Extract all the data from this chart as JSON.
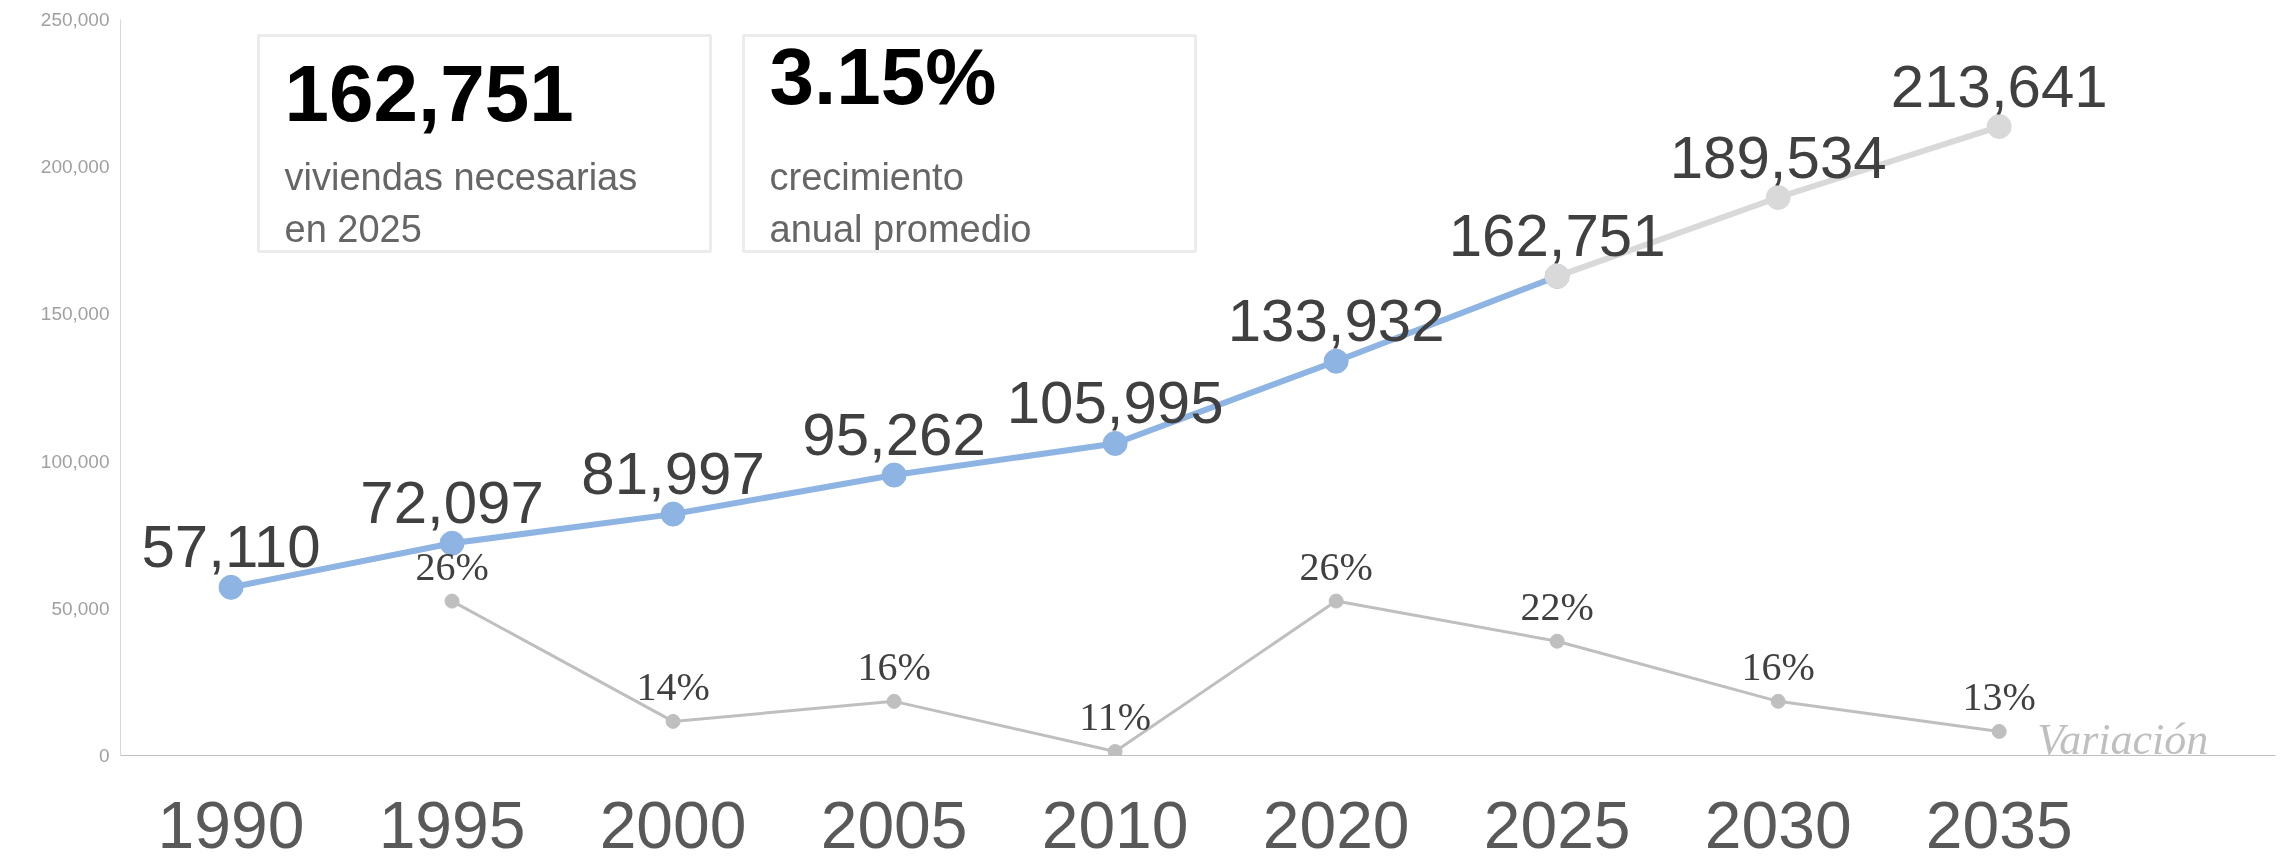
{
  "chart_data": {
    "type": "line",
    "categories": [
      "1990",
      "1995",
      "2000",
      "2005",
      "2010",
      "2020",
      "2025",
      "2030",
      "2035"
    ],
    "series": [
      {
        "color": "#8db4e2",
        "values": [
          57110,
          72097,
          81997,
          95262,
          105995,
          133932,
          162751,
          null,
          null
        ],
        "value_labels": [
          "57,110",
          "72,097",
          "81,997",
          "95,262",
          "105,995",
          "133,932",
          "162,751",
          null,
          null
        ]
      },
      {
        "color": "#d9d9d9",
        "values": [
          null,
          null,
          null,
          null,
          null,
          null,
          162751,
          189534,
          213641
        ],
        "value_labels": [
          null,
          null,
          null,
          null,
          null,
          null,
          null,
          "189,534",
          "213,641"
        ]
      },
      {
        "name": "Variación",
        "color": "#bfbfbf",
        "axis": "y2",
        "values": [
          null,
          26,
          14,
          16,
          11,
          26,
          22,
          16,
          13
        ],
        "value_labels": [
          null,
          "26%",
          "14%",
          "16%",
          "11%",
          "26%",
          "22%",
          "16%",
          "13%"
        ]
      }
    ],
    "ylim": [
      0,
      250000
    ],
    "yticks": [
      {
        "value": 0,
        "label": "0"
      },
      {
        "value": 50000,
        "label": "50,000"
      },
      {
        "value": 100000,
        "label": "100,000"
      },
      {
        "value": 150000,
        "label": "150,000"
      },
      {
        "value": 200000,
        "label": "200,000"
      },
      {
        "value": 250000,
        "label": "250,000"
      }
    ],
    "y2lim": [
      10.6,
      84
    ],
    "annotations": [
      "162,751",
      "viviendas necesarias\nen 2025",
      "3.15%",
      "crecimiento\nanual promedio"
    ],
    "data_labels": true,
    "marker": "circle",
    "line_style": "solid",
    "grid": false
  }
}
